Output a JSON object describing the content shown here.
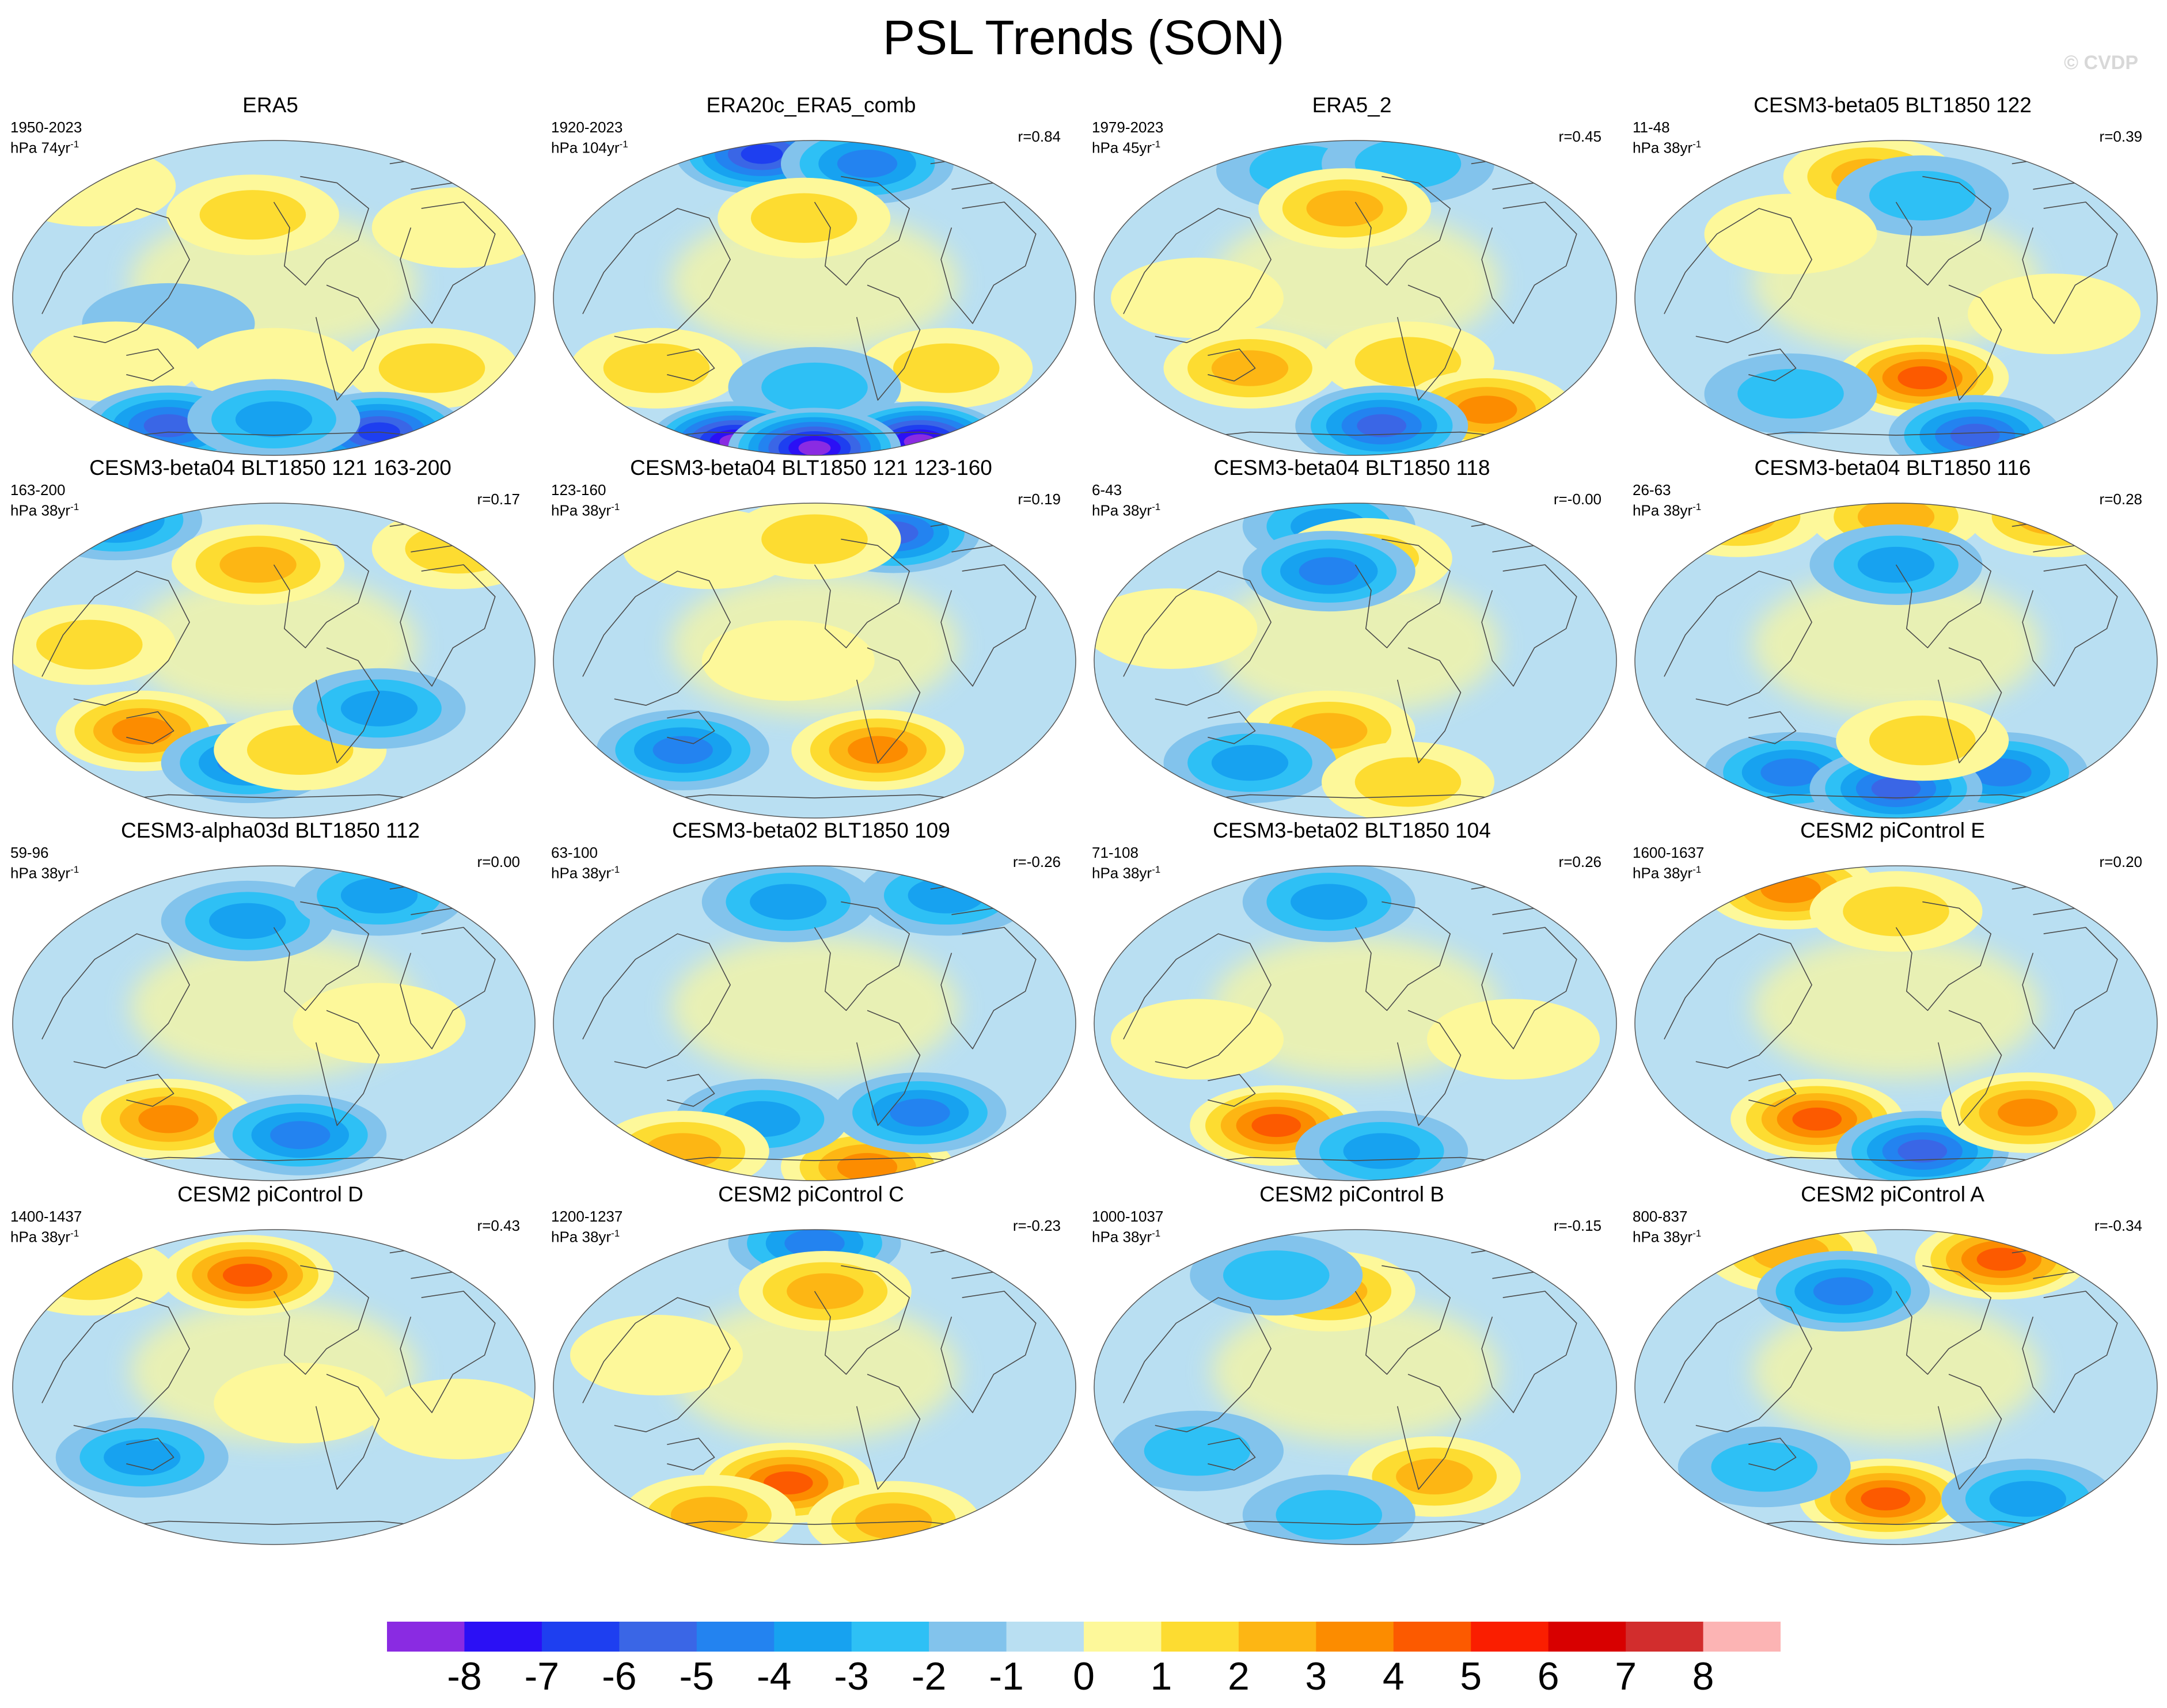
{
  "figure": {
    "title": "PSL Trends (SON)",
    "watermark": "© CVDP",
    "units_prefix": "hPa",
    "colorbar": {
      "labels": [
        "-8",
        "-7",
        "-6",
        "-5",
        "-4",
        "-3",
        "-2",
        "-1",
        "0",
        "1",
        "2",
        "3",
        "4",
        "5",
        "6",
        "7",
        "8"
      ],
      "colors": [
        "#8a2be2",
        "#2b10f5",
        "#1e3ff0",
        "#3a66e6",
        "#2383f0",
        "#17a2f0",
        "#2ec0f5",
        "#82c3ec",
        "#b9dff2",
        "#fdf89a",
        "#fddc31",
        "#fdb614",
        "#fc8c00",
        "#fc5a00",
        "#fa1e00",
        "#d80000",
        "#d22d2d",
        "#fcb4b4"
      ]
    },
    "palette": {
      "ocean": "#b9dff2",
      "coast": "#4a4a4a"
    }
  },
  "panels": [
    {
      "title": "ERA5",
      "years": "1950-2023",
      "span": "74yr",
      "r": ""
    },
    {
      "title": "ERA20c_ERA5_comb",
      "years": "1920-2023",
      "span": "104yr",
      "r": "r=0.84"
    },
    {
      "title": "ERA5_2",
      "years": "1979-2023",
      "span": "45yr",
      "r": "r=0.45"
    },
    {
      "title": "CESM3-beta05 BLT1850 122",
      "years": "11-48",
      "span": "38yr",
      "r": "r=0.39"
    },
    {
      "title": "CESM3-beta04 BLT1850 121 163-200",
      "years": "163-200",
      "span": "38yr",
      "r": "r=0.17"
    },
    {
      "title": "CESM3-beta04 BLT1850 121 123-160",
      "years": "123-160",
      "span": "38yr",
      "r": "r=0.19"
    },
    {
      "title": "CESM3-beta04 BLT1850 118",
      "years": "6-43",
      "span": "38yr",
      "r": "r=-0.00"
    },
    {
      "title": "CESM3-beta04 BLT1850 116",
      "years": "26-63",
      "span": "38yr",
      "r": "r=0.28"
    },
    {
      "title": "CESM3-alpha03d BLT1850 112",
      "years": "59-96",
      "span": "38yr",
      "r": "r=0.00"
    },
    {
      "title": "CESM3-beta02 BLT1850 109",
      "years": "63-100",
      "span": "38yr",
      "r": "r=-0.26"
    },
    {
      "title": "CESM3-beta02 BLT1850 104",
      "years": "71-108",
      "span": "38yr",
      "r": "r=0.26"
    },
    {
      "title": "CESM2 piControl E",
      "years": "1600-1637",
      "span": "38yr",
      "r": "r=0.20"
    },
    {
      "title": "CESM2 piControl D",
      "years": "1400-1437",
      "span": "38yr",
      "r": "r=0.43"
    },
    {
      "title": "CESM2 piControl C",
      "years": "1200-1237",
      "span": "38yr",
      "r": "r=-0.23"
    },
    {
      "title": "CESM2 piControl B",
      "years": "1000-1037",
      "span": "38yr",
      "r": "r=-0.15"
    },
    {
      "title": "CESM2 piControl A",
      "years": "800-837",
      "span": "38yr",
      "r": "r=-0.34"
    }
  ],
  "panel_fields": [
    [
      {
        "lon": 0.46,
        "lat": 0.24,
        "v": 2
      },
      {
        "lon": 0.15,
        "lat": 0.15,
        "v": 1
      },
      {
        "lon": 0.85,
        "lat": 0.28,
        "v": 1
      },
      {
        "lon": 0.3,
        "lat": 0.58,
        "v": -1
      },
      {
        "lon": 0.2,
        "lat": 0.7,
        "v": 1
      },
      {
        "lon": 0.5,
        "lat": 0.72,
        "v": 1
      },
      {
        "lon": 0.8,
        "lat": 0.72,
        "v": 2
      },
      {
        "lon": 0.3,
        "lat": 0.9,
        "v": -5
      },
      {
        "lon": 0.7,
        "lat": 0.92,
        "v": -6
      },
      {
        "lon": 0.5,
        "lat": 0.88,
        "v": -3
      }
    ],
    [
      {
        "lon": 0.4,
        "lat": 0.05,
        "v": -6
      },
      {
        "lon": 0.6,
        "lat": 0.08,
        "v": -4
      },
      {
        "lon": 0.48,
        "lat": 0.25,
        "v": 2
      },
      {
        "lon": 0.2,
        "lat": 0.72,
        "v": 2
      },
      {
        "lon": 0.75,
        "lat": 0.72,
        "v": 2
      },
      {
        "lon": 0.5,
        "lat": 0.78,
        "v": -2
      },
      {
        "lon": 0.35,
        "lat": 0.95,
        "v": -8
      },
      {
        "lon": 0.7,
        "lat": 0.95,
        "v": -8
      },
      {
        "lon": 0.5,
        "lat": 0.97,
        "v": -8
      }
    ],
    [
      {
        "lon": 0.4,
        "lat": 0.1,
        "v": -2
      },
      {
        "lon": 0.6,
        "lat": 0.08,
        "v": -2
      },
      {
        "lon": 0.48,
        "lat": 0.22,
        "v": 3
      },
      {
        "lon": 0.3,
        "lat": 0.72,
        "v": 3
      },
      {
        "lon": 0.6,
        "lat": 0.7,
        "v": 2
      },
      {
        "lon": 0.75,
        "lat": 0.85,
        "v": 4
      },
      {
        "lon": 0.55,
        "lat": 0.9,
        "v": -5
      },
      {
        "lon": 0.2,
        "lat": 0.5,
        "v": 1
      }
    ],
    [
      {
        "lon": 0.45,
        "lat": 0.12,
        "v": 3
      },
      {
        "lon": 0.55,
        "lat": 0.18,
        "v": -2
      },
      {
        "lon": 0.3,
        "lat": 0.3,
        "v": 1
      },
      {
        "lon": 0.55,
        "lat": 0.75,
        "v": 5
      },
      {
        "lon": 0.3,
        "lat": 0.8,
        "v": -2
      },
      {
        "lon": 0.65,
        "lat": 0.93,
        "v": -5
      },
      {
        "lon": 0.8,
        "lat": 0.55,
        "v": 1
      }
    ],
    [
      {
        "lon": 0.2,
        "lat": 0.06,
        "v": -4
      },
      {
        "lon": 0.47,
        "lat": 0.2,
        "v": 3
      },
      {
        "lon": 0.85,
        "lat": 0.15,
        "v": 2
      },
      {
        "lon": 0.25,
        "lat": 0.72,
        "v": 4
      },
      {
        "lon": 0.45,
        "lat": 0.82,
        "v": -4
      },
      {
        "lon": 0.55,
        "lat": 0.78,
        "v": 2
      },
      {
        "lon": 0.7,
        "lat": 0.65,
        "v": -3
      },
      {
        "lon": 0.15,
        "lat": 0.45,
        "v": 2
      }
    ],
    [
      {
        "lon": 0.3,
        "lat": 0.15,
        "v": 1
      },
      {
        "lon": 0.65,
        "lat": 0.1,
        "v": -5
      },
      {
        "lon": 0.5,
        "lat": 0.12,
        "v": 2
      },
      {
        "lon": 0.25,
        "lat": 0.78,
        "v": -4
      },
      {
        "lon": 0.62,
        "lat": 0.78,
        "v": 4
      },
      {
        "lon": 0.45,
        "lat": 0.5,
        "v": 1
      }
    ],
    [
      {
        "lon": 0.45,
        "lat": 0.08,
        "v": -3
      },
      {
        "lon": 0.52,
        "lat": 0.18,
        "v": 2
      },
      {
        "lon": 0.45,
        "lat": 0.22,
        "v": -4
      },
      {
        "lon": 0.45,
        "lat": 0.72,
        "v": 3
      },
      {
        "lon": 0.3,
        "lat": 0.82,
        "v": -3
      },
      {
        "lon": 0.6,
        "lat": 0.88,
        "v": 2
      },
      {
        "lon": 0.15,
        "lat": 0.4,
        "v": 1
      }
    ],
    [
      {
        "lon": 0.2,
        "lat": 0.05,
        "v": 3
      },
      {
        "lon": 0.5,
        "lat": 0.05,
        "v": 3
      },
      {
        "lon": 0.8,
        "lat": 0.05,
        "v": 3
      },
      {
        "lon": 0.5,
        "lat": 0.2,
        "v": -3
      },
      {
        "lon": 0.3,
        "lat": 0.85,
        "v": -4
      },
      {
        "lon": 0.7,
        "lat": 0.85,
        "v": -4
      },
      {
        "lon": 0.5,
        "lat": 0.9,
        "v": -5
      },
      {
        "lon": 0.55,
        "lat": 0.75,
        "v": 2
      }
    ],
    [
      {
        "lon": 0.45,
        "lat": 0.18,
        "v": -3
      },
      {
        "lon": 0.7,
        "lat": 0.1,
        "v": -3
      },
      {
        "lon": 0.3,
        "lat": 0.8,
        "v": 4
      },
      {
        "lon": 0.55,
        "lat": 0.85,
        "v": -4
      },
      {
        "lon": 0.7,
        "lat": 0.5,
        "v": 1
      }
    ],
    [
      {
        "lon": 0.45,
        "lat": 0.12,
        "v": -3
      },
      {
        "lon": 0.75,
        "lat": 0.1,
        "v": -3
      },
      {
        "lon": 0.6,
        "lat": 0.95,
        "v": 4
      },
      {
        "lon": 0.4,
        "lat": 0.8,
        "v": -3
      },
      {
        "lon": 0.7,
        "lat": 0.78,
        "v": -4
      },
      {
        "lon": 0.25,
        "lat": 0.9,
        "v": 3
      }
    ],
    [
      {
        "lon": 0.45,
        "lat": 0.12,
        "v": -3
      },
      {
        "lon": 0.35,
        "lat": 0.82,
        "v": 5
      },
      {
        "lon": 0.55,
        "lat": 0.9,
        "v": -3
      },
      {
        "lon": 0.8,
        "lat": 0.55,
        "v": 1
      },
      {
        "lon": 0.2,
        "lat": 0.55,
        "v": 1
      }
    ],
    [
      {
        "lon": 0.3,
        "lat": 0.08,
        "v": 4
      },
      {
        "lon": 0.5,
        "lat": 0.15,
        "v": 2
      },
      {
        "lon": 0.35,
        "lat": 0.8,
        "v": 5
      },
      {
        "lon": 0.55,
        "lat": 0.9,
        "v": -5
      },
      {
        "lon": 0.75,
        "lat": 0.78,
        "v": 4
      }
    ],
    [
      {
        "lon": 0.45,
        "lat": 0.15,
        "v": 5
      },
      {
        "lon": 0.15,
        "lat": 0.15,
        "v": 2
      },
      {
        "lon": 0.25,
        "lat": 0.72,
        "v": -3
      },
      {
        "lon": 0.55,
        "lat": 0.55,
        "v": 1
      },
      {
        "lon": 0.85,
        "lat": 0.6,
        "v": 1
      }
    ],
    [
      {
        "lon": 0.5,
        "lat": 0.05,
        "v": -4
      },
      {
        "lon": 0.52,
        "lat": 0.2,
        "v": 3
      },
      {
        "lon": 0.45,
        "lat": 0.8,
        "v": 5
      },
      {
        "lon": 0.3,
        "lat": 0.9,
        "v": 3
      },
      {
        "lon": 0.65,
        "lat": 0.92,
        "v": 3
      },
      {
        "lon": 0.2,
        "lat": 0.4,
        "v": 1
      }
    ],
    [
      {
        "lon": 0.45,
        "lat": 0.2,
        "v": 3
      },
      {
        "lon": 0.35,
        "lat": 0.15,
        "v": -2
      },
      {
        "lon": 0.65,
        "lat": 0.78,
        "v": 3
      },
      {
        "lon": 0.2,
        "lat": 0.7,
        "v": -2
      },
      {
        "lon": 0.45,
        "lat": 0.9,
        "v": -2
      }
    ],
    [
      {
        "lon": 0.7,
        "lat": 0.1,
        "v": 5
      },
      {
        "lon": 0.3,
        "lat": 0.08,
        "v": 3
      },
      {
        "lon": 0.4,
        "lat": 0.2,
        "v": -4
      },
      {
        "lon": 0.48,
        "lat": 0.85,
        "v": 5
      },
      {
        "lon": 0.75,
        "lat": 0.85,
        "v": -3
      },
      {
        "lon": 0.25,
        "lat": 0.75,
        "v": -2
      }
    ]
  ]
}
